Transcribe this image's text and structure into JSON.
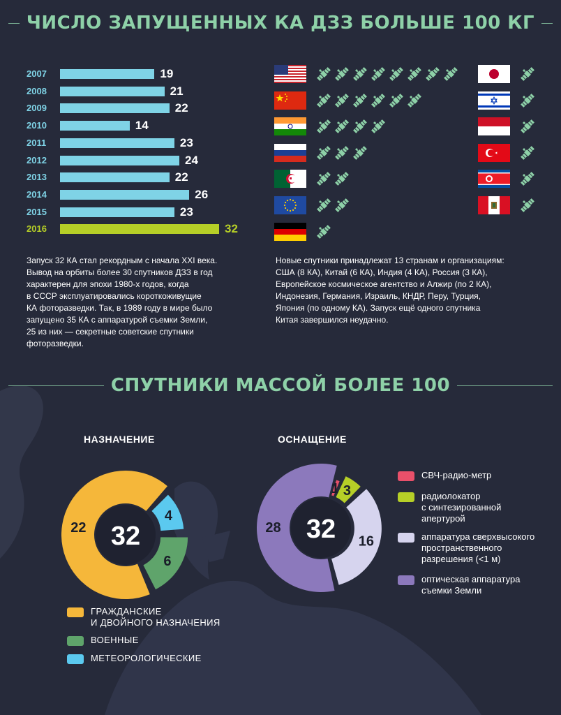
{
  "colors": {
    "background": "#262a3a",
    "title_green": "#8ed1a8",
    "bar_blue": "#7fd3e6",
    "bar_highlight": "#b6cf27",
    "civil_yellow": "#f5b73a",
    "military_green": "#5fa46b",
    "meteo_blue": "#5bc9ef",
    "microwave_red": "#e9506a",
    "radar_green": "#b6cf27",
    "highres_lavender": "#d6d4ee",
    "optical_purple": "#8c79bc"
  },
  "header1": {
    "title": "ЧИСЛО ЗАПУЩЕННЫХ КА ДЗЗ БОЛЬШЕ 100 КГ"
  },
  "header2": {
    "title": "СПУТНИКИ МАССОЙ БОЛЕЕ 100"
  },
  "chart_data": [
    {
      "type": "bar",
      "orientation": "horizontal",
      "categories": [
        "2007",
        "2008",
        "2009",
        "2010",
        "2011",
        "2012",
        "2013",
        "2014",
        "2015",
        "2016"
      ],
      "values": [
        19,
        21,
        22,
        14,
        23,
        24,
        22,
        26,
        23,
        32
      ],
      "highlight": "2016",
      "xlim": [
        0,
        32
      ]
    },
    {
      "type": "pie",
      "title": "НАЗНАЧЕНИЕ",
      "center_label": "32",
      "slices": [
        {
          "name": "ГРАЖДАНСКИЕ И ДВОЙНОГО НАЗНАЧЕНИЯ",
          "value": 22,
          "color": "#f5b73a"
        },
        {
          "name": "ВОЕННЫЕ",
          "value": 6,
          "color": "#5fa46b"
        },
        {
          "name": "МЕТЕОРОЛОГИЧЕСКИЕ",
          "value": 4,
          "color": "#5bc9ef"
        }
      ]
    },
    {
      "type": "pie",
      "title": "ОСНАЩЕНИЕ",
      "center_label": "32",
      "slices": [
        {
          "name": "СВЧ-радио-метр",
          "value": 1,
          "color": "#e9506a"
        },
        {
          "name": "радиолокатор с синтезированной апертурой",
          "value": 3,
          "color": "#b6cf27"
        },
        {
          "name": "аппаратура сверхвысокого пространственного разрешения (<1 м)",
          "value": 16,
          "color": "#d6d4ee"
        },
        {
          "name": "оптическая аппаратура съемки Земли",
          "value": 28,
          "color": "#8c79bc"
        }
      ]
    }
  ],
  "bars": {
    "rows": [
      {
        "year": "2007",
        "value": "19"
      },
      {
        "year": "2008",
        "value": "21"
      },
      {
        "year": "2009",
        "value": "22"
      },
      {
        "year": "2010",
        "value": "14"
      },
      {
        "year": "2011",
        "value": "23"
      },
      {
        "year": "2012",
        "value": "24"
      },
      {
        "year": "2013",
        "value": "22"
      },
      {
        "year": "2014",
        "value": "26"
      },
      {
        "year": "2015",
        "value": "23"
      },
      {
        "year": "2016",
        "value": "32"
      }
    ]
  },
  "countries": {
    "left": [
      {
        "flag": "usa-flag",
        "count": 8
      },
      {
        "flag": "china-flag",
        "count": 6
      },
      {
        "flag": "india-flag",
        "count": 4
      },
      {
        "flag": "russia-flag",
        "count": 3
      },
      {
        "flag": "algeria-flag",
        "count": 2
      },
      {
        "flag": "eu-flag",
        "count": 2
      },
      {
        "flag": "germany-flag",
        "count": 1
      }
    ],
    "right": [
      {
        "flag": "japan-flag",
        "count": 1
      },
      {
        "flag": "israel-flag",
        "count": 1
      },
      {
        "flag": "indonesia-flag",
        "count": 1
      },
      {
        "flag": "turkey-flag",
        "count": 1
      },
      {
        "flag": "north-korea-flag",
        "count": 1
      },
      {
        "flag": "peru-flag",
        "count": 1
      }
    ]
  },
  "text": {
    "left_para": [
      "Запуск 32 КА стал рекордным с начала XXI века.",
      "Вывод на орбиты более 30 спутников ДЗЗ в год",
      "характерен для эпохи 1980-х годов, когда",
      "в СССР эксплуатировались короткоживущие",
      "КА фоторазведки. Так, в 1989 году в мире было",
      "запущено 35 КА с аппаратурой съемки Земли,",
      "25 из них — секретные советские спутники",
      "фоторазведки."
    ],
    "right_para": [
      "Новые спутники принадлежат 13 странам и организациям:",
      "США (8 КА), Китай (6 КА), Индия (4 КА), Россия (3 КА),",
      "Европейское космическое агентство и Алжир (по 2 КА),",
      "Индонезия, Германия, Израиль, КНДР, Перу, Турция,",
      "Япония (по одному КА). Запуск ещё одного спутника",
      "Китая завершился неудачно."
    ]
  },
  "purpose": {
    "title": "НАЗНАЧЕНИЕ",
    "center": "32",
    "values": [
      "22",
      "6",
      "4"
    ],
    "legend": [
      {
        "line1": "ГРАЖДАНСКИЕ",
        "line2": "И ДВОЙНОГО НАЗНАЧЕНИЯ"
      },
      {
        "line1": "ВОЕННЫЕ",
        "line2": ""
      },
      {
        "line1": "МЕТЕОРОЛОГИЧЕСКИЕ",
        "line2": ""
      }
    ]
  },
  "equipment": {
    "title": "ОСНАЩЕНИЕ",
    "center": "32",
    "values": [
      "1",
      "3",
      "16",
      "28"
    ],
    "legend": [
      {
        "lines": [
          "СВЧ-радио-метр"
        ]
      },
      {
        "lines": [
          "радиолокатор",
          "с синтезированной",
          "апертурой"
        ]
      },
      {
        "lines": [
          "аппаратура сверхвысокого",
          "пространственного",
          "разрешения (<1 м)"
        ]
      },
      {
        "lines": [
          "оптическая аппаратура",
          "съемки Земли"
        ]
      }
    ]
  }
}
